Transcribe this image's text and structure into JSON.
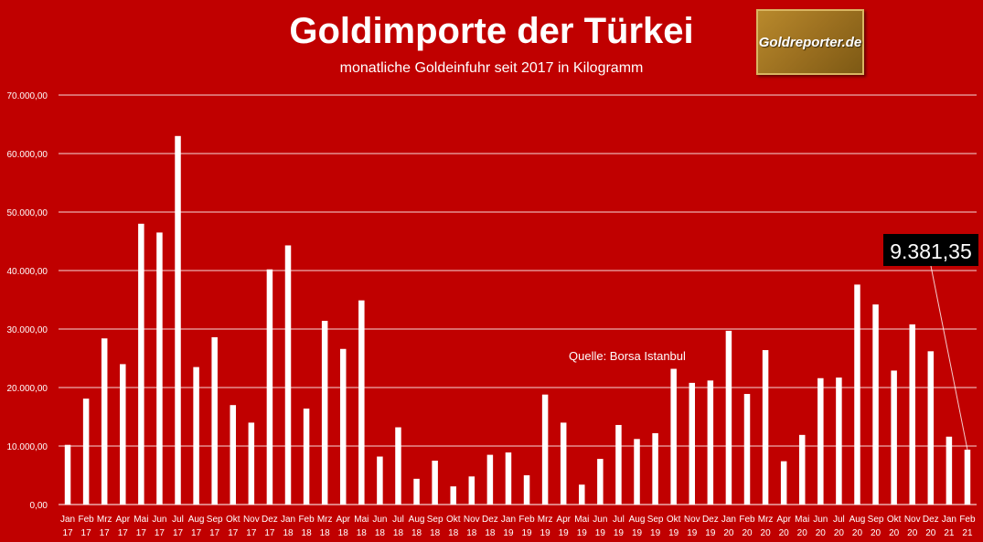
{
  "title": "Goldimporte der Türkei",
  "subtitle": "monatliche Goldeinfuhr seit 2017 in Kilogramm",
  "logo_text": "Goldreporter.de",
  "colors": {
    "background": "#c00000",
    "bars": "#ffffff",
    "callout_bg": "#000000"
  },
  "chart_data": {
    "type": "bar",
    "title": "Goldimporte der Türkei",
    "subtitle": "monatliche Goldeinfuhr seit 2017 in Kilogramm",
    "xlabel": "",
    "ylabel": "",
    "ylim": [
      0,
      70000
    ],
    "yticks": [
      "0,00",
      "10.000,00",
      "20.000,00",
      "30.000,00",
      "40.000,00",
      "50.000,00",
      "60.000,00",
      "70.000,00"
    ],
    "grid": true,
    "categories": [
      [
        "Jan",
        "17"
      ],
      [
        "Feb",
        "17"
      ],
      [
        "Mrz",
        "17"
      ],
      [
        "Apr",
        "17"
      ],
      [
        "Mai",
        "17"
      ],
      [
        "Jun",
        "17"
      ],
      [
        "Jul",
        "17"
      ],
      [
        "Aug",
        "17"
      ],
      [
        "Sep",
        "17"
      ],
      [
        "Okt",
        "17"
      ],
      [
        "Nov",
        "17"
      ],
      [
        "Dez",
        "17"
      ],
      [
        "Jan",
        "18"
      ],
      [
        "Feb",
        "18"
      ],
      [
        "Mrz",
        "18"
      ],
      [
        "Apr",
        "18"
      ],
      [
        "Mai",
        "18"
      ],
      [
        "Jun",
        "18"
      ],
      [
        "Jul",
        "18"
      ],
      [
        "Aug",
        "18"
      ],
      [
        "Sep",
        "18"
      ],
      [
        "Okt",
        "18"
      ],
      [
        "Nov",
        "18"
      ],
      [
        "Dez",
        "18"
      ],
      [
        "Jan",
        "19"
      ],
      [
        "Feb",
        "19"
      ],
      [
        "Mrz",
        "19"
      ],
      [
        "Apr",
        "19"
      ],
      [
        "Mai",
        "19"
      ],
      [
        "Jun",
        "19"
      ],
      [
        "Jul",
        "19"
      ],
      [
        "Aug",
        "19"
      ],
      [
        "Sep",
        "19"
      ],
      [
        "Okt",
        "19"
      ],
      [
        "Nov",
        "19"
      ],
      [
        "Dez",
        "19"
      ],
      [
        "Jan",
        "20"
      ],
      [
        "Feb",
        "20"
      ],
      [
        "Mrz",
        "20"
      ],
      [
        "Apr",
        "20"
      ],
      [
        "Mai",
        "20"
      ],
      [
        "Jun",
        "20"
      ],
      [
        "Jul",
        "20"
      ],
      [
        "Aug",
        "20"
      ],
      [
        "Sep",
        "20"
      ],
      [
        "Okt",
        "20"
      ],
      [
        "Nov",
        "20"
      ],
      [
        "Dez",
        "20"
      ],
      [
        "Jan",
        "21"
      ],
      [
        "Feb",
        "21"
      ]
    ],
    "values": [
      10200,
      18100,
      28400,
      24000,
      48000,
      46500,
      63000,
      23500,
      28600,
      17000,
      14000,
      40200,
      44300,
      16400,
      31400,
      26600,
      34900,
      8200,
      13200,
      4400,
      7500,
      3100,
      4800,
      8500,
      8900,
      5000,
      18800,
      14000,
      3400,
      7800,
      13600,
      11200,
      12200,
      23200,
      20800,
      21200,
      29700,
      18900,
      26400,
      7400,
      11900,
      21600,
      21700,
      37600,
      34200,
      22900,
      30800,
      26200,
      11600,
      9381.35
    ],
    "annotations": [
      {
        "text": "Quelle: Borsa Istanbul"
      },
      {
        "text": "9.381,35",
        "target_index": 49
      }
    ]
  }
}
